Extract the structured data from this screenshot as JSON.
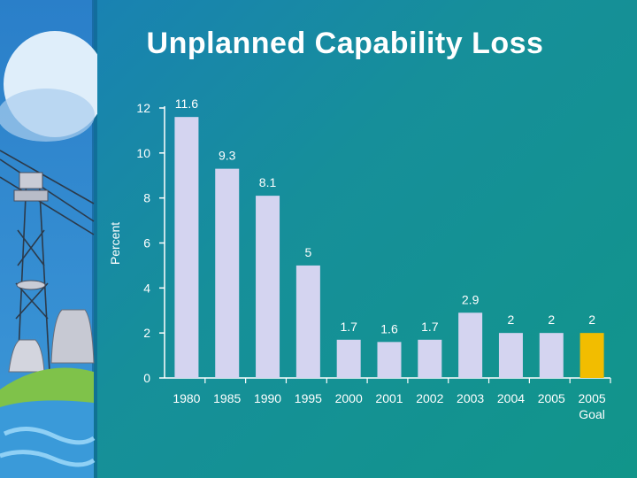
{
  "slide": {
    "title": "Unplanned Capability Loss"
  },
  "colors": {
    "bar": "#d4d4f0",
    "goal_bar": "#f2bd00",
    "background_start": "#1a7fb8",
    "background_end": "#11958a"
  },
  "chart_data": {
    "type": "bar",
    "title": "Unplanned Capability Loss",
    "ylabel": "Percent",
    "xlabel": "",
    "ylim": [
      0,
      12
    ],
    "yticks": [
      0,
      2,
      4,
      6,
      8,
      10,
      12
    ],
    "grid": false,
    "categories": [
      "1980",
      "1985",
      "1990",
      "1995",
      "2000",
      "2001",
      "2002",
      "2003",
      "2004",
      "2005",
      "2005\nGoal"
    ],
    "values": [
      11.6,
      9.3,
      8.1,
      5,
      1.7,
      1.6,
      1.7,
      2.9,
      2,
      2,
      2
    ],
    "value_labels": [
      "11.6",
      "9.3",
      "8.1",
      "5",
      "1.7",
      "1.6",
      "1.7",
      "2.9",
      "2",
      "2",
      "2"
    ],
    "highlight_index": 10
  }
}
